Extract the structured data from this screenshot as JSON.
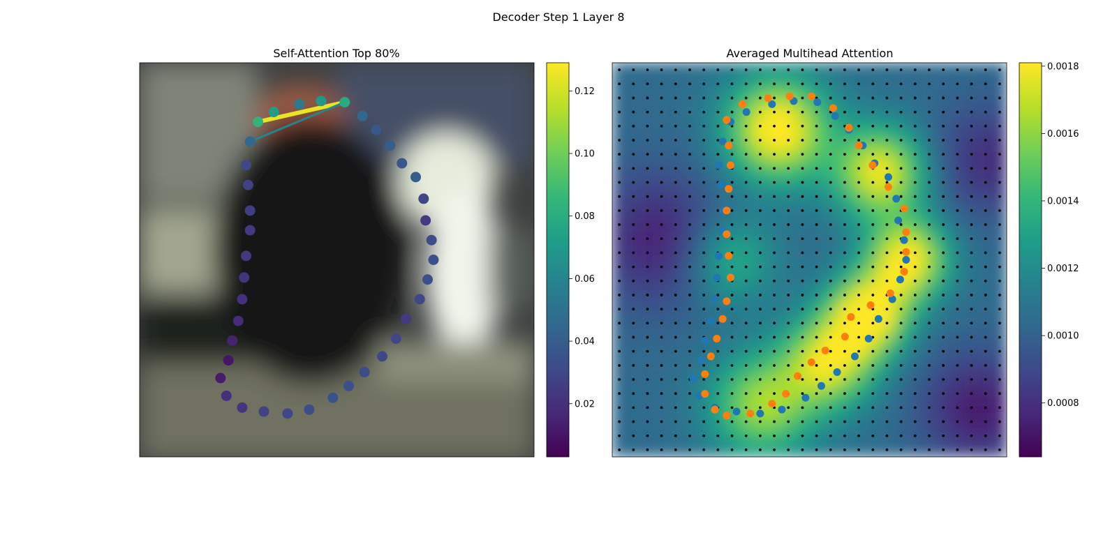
{
  "figure": {
    "suptitle": "Decoder Step 1 Layer 8"
  },
  "colors": {
    "viridis": [
      "#440154",
      "#482878",
      "#3e4989",
      "#31688e",
      "#26828e",
      "#1f9e89",
      "#35b779",
      "#6ece58",
      "#b5de2b",
      "#fde725"
    ],
    "series_blue": "#1f77b4",
    "series_orange": "#ff7f0e",
    "grid_dots": "#000000",
    "top_edge": "#fde725"
  },
  "chart_data": [
    {
      "type": "scatter",
      "title": "Self-Attention Top 80%",
      "xlabel": "",
      "ylabel": "",
      "background": "blurred image",
      "points": [
        {
          "x": 0.3,
          "y": 0.15,
          "attn": 0.085
        },
        {
          "x": 0.34,
          "y": 0.125,
          "attn": 0.072
        },
        {
          "x": 0.405,
          "y": 0.105,
          "attn": 0.055
        },
        {
          "x": 0.46,
          "y": 0.097,
          "attn": 0.07
        },
        {
          "x": 0.52,
          "y": 0.1,
          "attn": 0.08
        },
        {
          "x": 0.565,
          "y": 0.135,
          "attn": 0.045
        },
        {
          "x": 0.6,
          "y": 0.17,
          "attn": 0.038
        },
        {
          "x": 0.635,
          "y": 0.21,
          "attn": 0.04
        },
        {
          "x": 0.665,
          "y": 0.255,
          "attn": 0.038
        },
        {
          "x": 0.7,
          "y": 0.29,
          "attn": 0.04
        },
        {
          "x": 0.72,
          "y": 0.345,
          "attn": 0.03
        },
        {
          "x": 0.725,
          "y": 0.4,
          "attn": 0.025
        },
        {
          "x": 0.74,
          "y": 0.45,
          "attn": 0.032
        },
        {
          "x": 0.745,
          "y": 0.5,
          "attn": 0.034
        },
        {
          "x": 0.73,
          "y": 0.55,
          "attn": 0.034
        },
        {
          "x": 0.71,
          "y": 0.6,
          "attn": 0.03
        },
        {
          "x": 0.675,
          "y": 0.65,
          "attn": 0.025
        },
        {
          "x": 0.65,
          "y": 0.7,
          "attn": 0.03
        },
        {
          "x": 0.615,
          "y": 0.745,
          "attn": 0.03
        },
        {
          "x": 0.57,
          "y": 0.785,
          "attn": 0.032
        },
        {
          "x": 0.53,
          "y": 0.82,
          "attn": 0.034
        },
        {
          "x": 0.49,
          "y": 0.85,
          "attn": 0.035
        },
        {
          "x": 0.43,
          "y": 0.88,
          "attn": 0.033
        },
        {
          "x": 0.375,
          "y": 0.89,
          "attn": 0.03
        },
        {
          "x": 0.315,
          "y": 0.885,
          "attn": 0.028
        },
        {
          "x": 0.26,
          "y": 0.875,
          "attn": 0.022
        },
        {
          "x": 0.22,
          "y": 0.845,
          "attn": 0.02
        },
        {
          "x": 0.205,
          "y": 0.8,
          "attn": 0.012
        },
        {
          "x": 0.225,
          "y": 0.755,
          "attn": 0.01
        },
        {
          "x": 0.235,
          "y": 0.705,
          "attn": 0.015
        },
        {
          "x": 0.25,
          "y": 0.655,
          "attn": 0.018
        },
        {
          "x": 0.26,
          "y": 0.6,
          "attn": 0.02
        },
        {
          "x": 0.265,
          "y": 0.545,
          "attn": 0.022
        },
        {
          "x": 0.27,
          "y": 0.49,
          "attn": 0.024
        },
        {
          "x": 0.28,
          "y": 0.425,
          "attn": 0.024
        },
        {
          "x": 0.28,
          "y": 0.375,
          "attn": 0.026
        },
        {
          "x": 0.275,
          "y": 0.31,
          "attn": 0.028
        },
        {
          "x": 0.27,
          "y": 0.26,
          "attn": 0.03
        },
        {
          "x": 0.28,
          "y": 0.2,
          "attn": 0.045
        }
      ],
      "edges": [
        {
          "from": 0,
          "to": 4,
          "weight": 0.125
        },
        {
          "from": 38,
          "to": 4,
          "weight": 0.06
        }
      ],
      "colorbar": {
        "cmap": "viridis",
        "min": 0.003,
        "max": 0.129,
        "ticks": [
          0.02,
          0.04,
          0.06,
          0.08,
          0.1,
          0.12
        ],
        "tick_labels": [
          "0.02",
          "0.04",
          "0.06",
          "0.08",
          "0.10",
          "0.12"
        ]
      }
    },
    {
      "type": "heatmap",
      "title": "Averaged Multihead Attention",
      "xlabel": "",
      "ylabel": "",
      "grid_size": 28,
      "hotspots": [
        {
          "x": 0.42,
          "y": 0.17,
          "amp": 0.00085,
          "sigma": 0.09
        },
        {
          "x": 0.68,
          "y": 0.28,
          "amp": 0.00075,
          "sigma": 0.08
        },
        {
          "x": 0.75,
          "y": 0.5,
          "amp": 0.0008,
          "sigma": 0.07
        },
        {
          "x": 0.65,
          "y": 0.64,
          "amp": 0.00085,
          "sigma": 0.07
        },
        {
          "x": 0.55,
          "y": 0.76,
          "amp": 0.0007,
          "sigma": 0.08
        },
        {
          "x": 0.38,
          "y": 0.87,
          "amp": 0.0006,
          "sigma": 0.09
        },
        {
          "x": 0.3,
          "y": 0.5,
          "amp": 0.00035,
          "sigma": 0.08
        }
      ],
      "baseline": 0.00105,
      "low_regions": [
        {
          "x": 0.12,
          "y": 0.45,
          "amp": 0.0003,
          "sigma": 0.12
        },
        {
          "x": 0.93,
          "y": 0.88,
          "amp": 0.00032,
          "sigma": 0.1
        },
        {
          "x": 0.95,
          "y": 0.25,
          "amp": 0.00025,
          "sigma": 0.1
        }
      ],
      "series": [
        {
          "color": "blue",
          "points": [
            [
              0.3,
              0.15
            ],
            [
              0.34,
              0.125
            ],
            [
              0.405,
              0.105
            ],
            [
              0.46,
              0.097
            ],
            [
              0.52,
              0.1
            ],
            [
              0.565,
              0.135
            ],
            [
              0.6,
              0.17
            ],
            [
              0.635,
              0.21
            ],
            [
              0.665,
              0.255
            ],
            [
              0.7,
              0.29
            ],
            [
              0.72,
              0.345
            ],
            [
              0.725,
              0.4
            ],
            [
              0.74,
              0.45
            ],
            [
              0.745,
              0.5
            ],
            [
              0.73,
              0.55
            ],
            [
              0.71,
              0.6
            ],
            [
              0.675,
              0.65
            ],
            [
              0.65,
              0.7
            ],
            [
              0.615,
              0.745
            ],
            [
              0.57,
              0.785
            ],
            [
              0.53,
              0.82
            ],
            [
              0.49,
              0.85
            ],
            [
              0.43,
              0.88
            ],
            [
              0.375,
              0.89
            ],
            [
              0.315,
              0.885
            ],
            [
              0.26,
              0.875
            ],
            [
              0.22,
              0.845
            ],
            [
              0.205,
              0.8
            ],
            [
              0.225,
              0.755
            ],
            [
              0.235,
              0.705
            ],
            [
              0.25,
              0.655
            ],
            [
              0.26,
              0.6
            ],
            [
              0.265,
              0.545
            ],
            [
              0.27,
              0.49
            ],
            [
              0.28,
              0.425
            ],
            [
              0.28,
              0.375
            ],
            [
              0.275,
              0.31
            ],
            [
              0.27,
              0.26
            ],
            [
              0.28,
              0.2
            ]
          ]
        },
        {
          "color": "orange",
          "points": [
            [
              0.33,
              0.105
            ],
            [
              0.395,
              0.09
            ],
            [
              0.45,
              0.085
            ],
            [
              0.505,
              0.085
            ],
            [
              0.56,
              0.115
            ],
            [
              0.6,
              0.165
            ],
            [
              0.625,
              0.21
            ],
            [
              0.66,
              0.26
            ],
            [
              0.7,
              0.315
            ],
            [
              0.74,
              0.37
            ],
            [
              0.745,
              0.43
            ],
            [
              0.745,
              0.48
            ],
            [
              0.74,
              0.53
            ],
            [
              0.705,
              0.585
            ],
            [
              0.655,
              0.615
            ],
            [
              0.605,
              0.645
            ],
            [
              0.59,
              0.695
            ],
            [
              0.54,
              0.73
            ],
            [
              0.505,
              0.76
            ],
            [
              0.47,
              0.795
            ],
            [
              0.44,
              0.84
            ],
            [
              0.405,
              0.865
            ],
            [
              0.35,
              0.89
            ],
            [
              0.29,
              0.895
            ],
            [
              0.26,
              0.88
            ],
            [
              0.235,
              0.84
            ],
            [
              0.235,
              0.79
            ],
            [
              0.25,
              0.745
            ],
            [
              0.265,
              0.7
            ],
            [
              0.28,
              0.65
            ],
            [
              0.29,
              0.605
            ],
            [
              0.3,
              0.545
            ],
            [
              0.295,
              0.49
            ],
            [
              0.29,
              0.435
            ],
            [
              0.29,
              0.375
            ],
            [
              0.295,
              0.32
            ],
            [
              0.3,
              0.26
            ],
            [
              0.295,
              0.21
            ],
            [
              0.29,
              0.145
            ]
          ]
        }
      ],
      "colorbar": {
        "cmap": "viridis",
        "min": 0.00064,
        "max": 0.00181,
        "ticks": [
          0.0008,
          0.001,
          0.0012,
          0.0014,
          0.0016,
          0.0018
        ],
        "tick_labels": [
          "0.0008",
          "0.0010",
          "0.0012",
          "0.0014",
          "0.0016",
          "0.0018"
        ]
      }
    }
  ]
}
